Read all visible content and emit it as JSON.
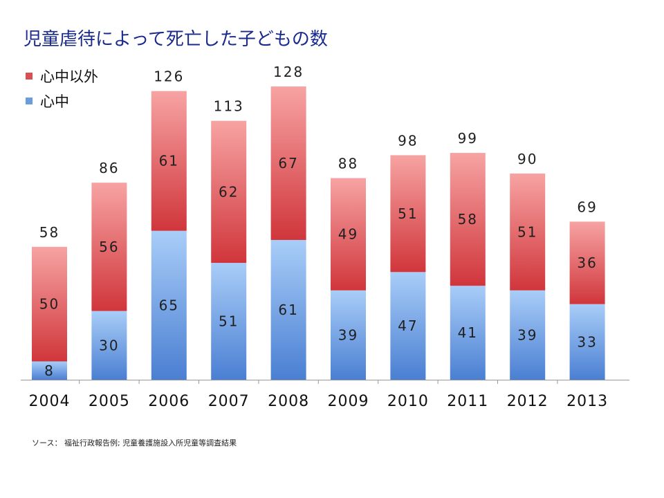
{
  "title": "児童虐待によって死亡した子どもの数",
  "source": "ソース： 福祉行政報告例; 児童養護施設入所児童等調査結果",
  "colors": {
    "top": "#d94f53",
    "bottom": "#6a9de0"
  },
  "chart_data": {
    "type": "bar",
    "stacked": true,
    "categories": [
      "2004",
      "2005",
      "2006",
      "2007",
      "2008",
      "2009",
      "2010",
      "2011",
      "2012",
      "2013"
    ],
    "series": [
      {
        "name": "心中",
        "values": [
          8,
          30,
          65,
          51,
          61,
          39,
          47,
          41,
          39,
          33
        ]
      },
      {
        "name": "心中以外",
        "values": [
          50,
          56,
          61,
          62,
          67,
          49,
          51,
          58,
          51,
          36
        ]
      }
    ],
    "totals": [
      58,
      86,
      126,
      113,
      128,
      88,
      98,
      99,
      90,
      69
    ],
    "legend": [
      "心中以外",
      "心中"
    ],
    "legend_position": "top-left",
    "ylim": [
      0,
      135
    ],
    "grid": false
  }
}
